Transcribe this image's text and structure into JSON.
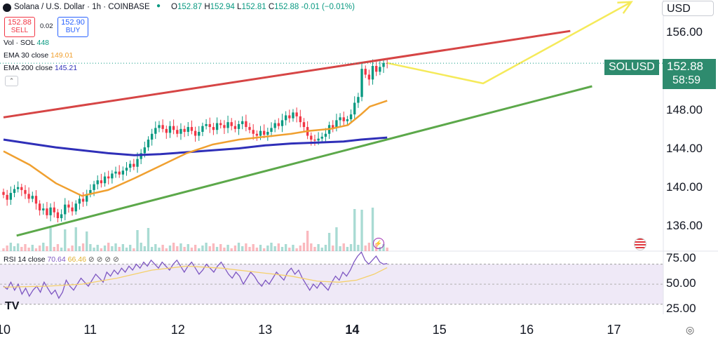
{
  "header": {
    "title": "Solana / U.S. Dollar · 1h · COINBASE",
    "ohlc": {
      "o_label": "O",
      "o": "152.87",
      "h_label": "H",
      "h": "152.94",
      "l_label": "L",
      "l": "152.81",
      "c_label": "C",
      "c": "152.88",
      "chg": "-0.01 (−0.01%)"
    },
    "sell_price": "152.88",
    "sell_label": "SELL",
    "spread": "0.02",
    "buy_price": "152.90",
    "buy_label": "BUY",
    "vol_label": "Vol · SOL",
    "vol_value": "448",
    "ema30_label": "EMA 30 close",
    "ema30_value": "149.01",
    "ema200_label": "EMA 200 close",
    "ema200_value": "145.21",
    "collapse_icon": "chevron-up-icon"
  },
  "currency": "USD",
  "price_tag": {
    "symbol": "SOLUSD",
    "price": "152.88",
    "countdown": "58:59"
  },
  "rsi": {
    "label": "RSI 14 close",
    "value": "70.64",
    "ma": "66.46",
    "dots": "⊘ ⊘ ⊘ ⊘"
  },
  "colors": {
    "up": "#089981",
    "down": "#f23645",
    "ema30": "#f0a030",
    "ema200": "#2f2fb8",
    "upper_line": "#d64545",
    "lower_line": "#5ca84a",
    "projection": "#f5ea5a",
    "rsi": "#7e57c2",
    "rsi_ma": "#f5d06a"
  },
  "chart_data": {
    "type": "candlestick",
    "y_ticks": [
      "156.00",
      "148.00",
      "144.00",
      "140.00",
      "136.00"
    ],
    "y_tick_values": [
      156,
      148,
      144,
      140,
      136
    ],
    "ylim": [
      133.5,
      159.4
    ],
    "x_ticks": [
      "10",
      "11",
      "12",
      "13",
      "14",
      "15",
      "16",
      "17"
    ],
    "xlim": [
      10.0,
      17.8
    ],
    "rsi_ticks": [
      "75.00",
      "50.00",
      "25.00"
    ],
    "rsi_tick_values": [
      75,
      50,
      25
    ],
    "rsi_ylim": [
      20,
      83
    ],
    "rsi_bands": [
      70,
      30
    ],
    "closes": [
      139.3,
      138.8,
      139.5,
      139.9,
      140.1,
      139.8,
      139.4,
      138.9,
      139.2,
      138.4,
      137.7,
      137.9,
      137.2,
      138.0,
      137.5,
      136.9,
      137.3,
      138.3,
      138.0,
      137.6,
      138.4,
      138.9,
      138.6,
      139.4,
      139.8,
      140.4,
      140.8,
      140.5,
      141.2,
      141.0,
      141.5,
      141.7,
      141.4,
      141.8,
      142.1,
      142.5,
      142.2,
      143.0,
      143.6,
      144.2,
      145.0,
      145.6,
      146.2,
      146.5,
      146.1,
      145.7,
      146.4,
      146.0,
      145.6,
      146.1,
      145.8,
      146.3,
      145.9,
      145.4,
      145.8,
      146.4,
      146.6,
      146.3,
      146.0,
      146.7,
      146.5,
      146.2,
      146.8,
      146.4,
      146.1,
      146.6,
      146.9,
      146.3,
      146.0,
      145.6,
      145.4,
      145.9,
      145.5,
      145.8,
      146.2,
      146.7,
      146.4,
      147.0,
      147.5,
      147.2,
      147.8,
      147.4,
      146.8,
      146.3,
      145.4,
      145.0,
      144.9,
      145.1,
      145.3,
      145.6,
      146.5,
      146.2,
      147.0,
      147.3,
      146.9,
      147.1,
      147.6,
      148.8,
      149.4,
      152.3,
      151.7,
      151.2,
      152.6,
      152.0,
      152.5,
      152.9,
      152.88
    ],
    "ema30": [
      [
        10.0,
        143.8
      ],
      [
        10.3,
        142.4
      ],
      [
        10.6,
        140.5
      ],
      [
        10.9,
        139.2
      ],
      [
        11.2,
        139.8
      ],
      [
        11.5,
        141.0
      ],
      [
        11.8,
        142.3
      ],
      [
        12.1,
        143.6
      ],
      [
        12.4,
        144.5
      ],
      [
        12.7,
        145.0
      ],
      [
        13.0,
        145.3
      ],
      [
        13.3,
        145.6
      ],
      [
        13.5,
        145.9
      ],
      [
        13.75,
        146.1
      ],
      [
        13.95,
        146.5
      ],
      [
        14.1,
        147.6
      ],
      [
        14.2,
        148.4
      ],
      [
        14.4,
        149.01
      ]
    ],
    "ema200": [
      [
        10.0,
        145.0
      ],
      [
        10.3,
        144.6
      ],
      [
        10.6,
        144.2
      ],
      [
        10.9,
        143.9
      ],
      [
        11.2,
        143.6
      ],
      [
        11.5,
        143.4
      ],
      [
        11.8,
        143.5
      ],
      [
        12.1,
        143.7
      ],
      [
        12.4,
        143.9
      ],
      [
        12.7,
        144.1
      ],
      [
        13.0,
        144.4
      ],
      [
        13.3,
        144.6
      ],
      [
        13.6,
        144.7
      ],
      [
        13.9,
        144.8
      ],
      [
        14.1,
        145.0
      ],
      [
        14.4,
        145.21
      ]
    ],
    "rsi_values": [
      48,
      45,
      52,
      44,
      50,
      40,
      46,
      38,
      44,
      48,
      42,
      52,
      46,
      40,
      44,
      36,
      42,
      54,
      48,
      44,
      50,
      56,
      52,
      48,
      54,
      60,
      56,
      52,
      62,
      58,
      64,
      60,
      66,
      62,
      68,
      64,
      70,
      66,
      72,
      68,
      74,
      70,
      66,
      72,
      68,
      64,
      70,
      74,
      68,
      62,
      68,
      72,
      66,
      60,
      64,
      70,
      66,
      62,
      68,
      72,
      66,
      60,
      56,
      62,
      58,
      50,
      56,
      62,
      58,
      52,
      48,
      54,
      50,
      56,
      62,
      58,
      54,
      62,
      66,
      60,
      64,
      56,
      50,
      44,
      50,
      46,
      52,
      48,
      44,
      52,
      58,
      54,
      62,
      58,
      64,
      72,
      78,
      82,
      74,
      70,
      74,
      78,
      72,
      70,
      70.64
    ],
    "rsi_ma": [
      [
        10.0,
        47
      ],
      [
        10.5,
        48
      ],
      [
        10.9,
        50
      ],
      [
        11.3,
        56
      ],
      [
        11.7,
        64
      ],
      [
        12.1,
        68
      ],
      [
        12.5,
        66
      ],
      [
        12.9,
        62
      ],
      [
        13.3,
        58
      ],
      [
        13.6,
        53
      ],
      [
        13.85,
        52
      ],
      [
        14.05,
        54
      ],
      [
        14.25,
        60
      ],
      [
        14.4,
        66.46
      ]
    ],
    "trendline_upper": [
      [
        10.0,
        147.3
      ],
      [
        16.5,
        156.2
      ]
    ],
    "trendline_lower": [
      [
        10.15,
        135.1
      ],
      [
        16.75,
        150.5
      ]
    ],
    "projection": [
      [
        14.4,
        152.9
      ],
      [
        15.5,
        150.8
      ],
      [
        17.2,
        159.2
      ]
    ]
  }
}
